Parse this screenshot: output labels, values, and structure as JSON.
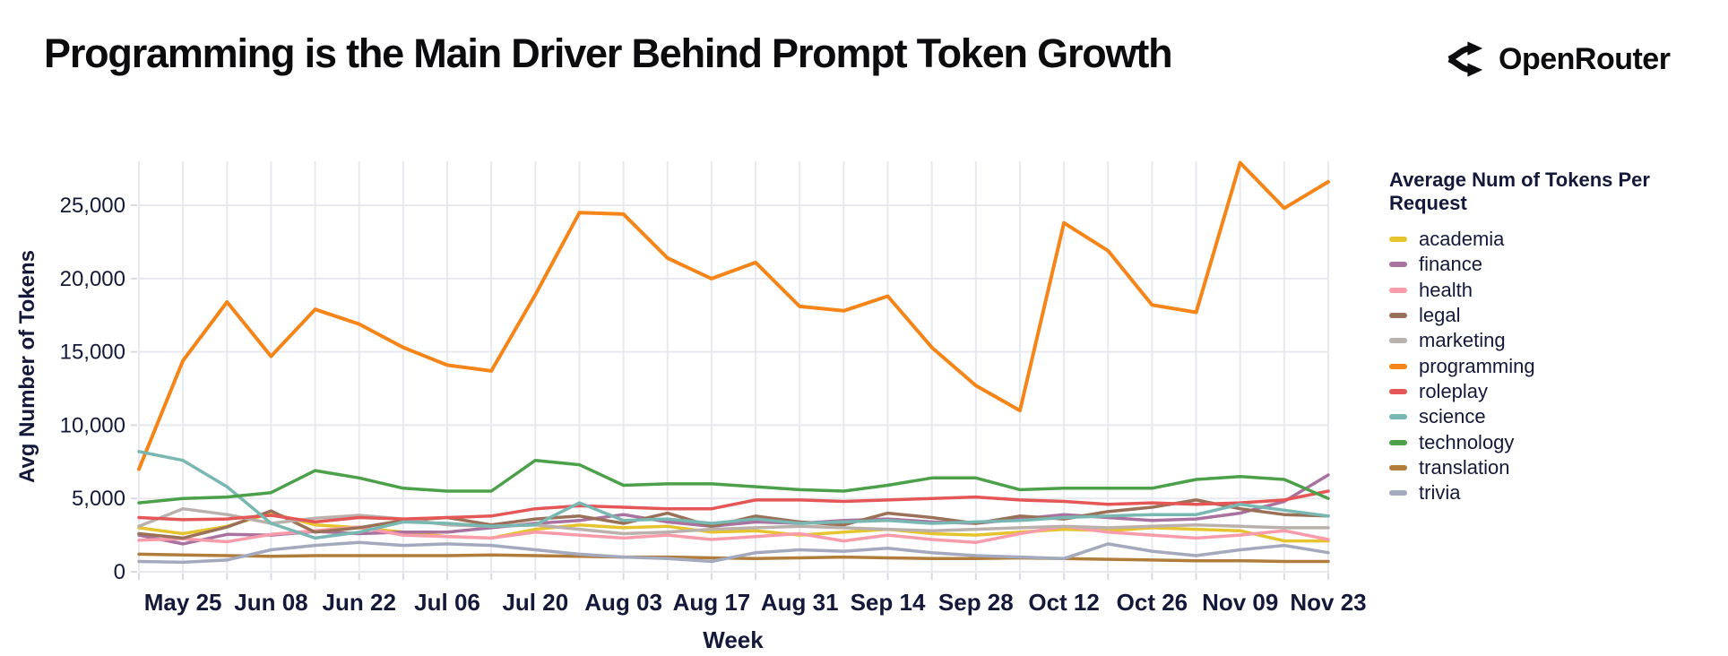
{
  "header": {
    "title": "Programming is the Main Driver Behind Prompt Token Growth",
    "brand": "OpenRouter"
  },
  "colors": {
    "background": "#ffffff",
    "title_text": "#0c0c0e",
    "axis_text": "#14193a",
    "grid": "#e8e9ef",
    "tick": "#d8dae2"
  },
  "chart_data": {
    "type": "line",
    "title": "Programming is the Main Driver Behind Prompt Token Growth",
    "xlabel": "Week",
    "ylabel": "Avg Number of Tokens",
    "ylim": [
      0,
      28000
    ],
    "grid": true,
    "legend_title": "Average Num of Tokens Per Request",
    "legend_position": "right",
    "x": [
      "May 18",
      "May 25",
      "Jun 01",
      "Jun 08",
      "Jun 15",
      "Jun 22",
      "Jun 29",
      "Jul 06",
      "Jul 13",
      "Jul 20",
      "Jul 27",
      "Aug 03",
      "Aug 10",
      "Aug 17",
      "Aug 24",
      "Aug 31",
      "Sep 07",
      "Sep 14",
      "Sep 21",
      "Sep 28",
      "Oct 05",
      "Oct 12",
      "Oct 19",
      "Oct 26",
      "Nov 02",
      "Nov 09",
      "Nov 16",
      "Nov 23"
    ],
    "x_tick_indices": [
      1,
      3,
      5,
      7,
      9,
      11,
      13,
      15,
      17,
      19,
      21,
      23,
      25,
      27
    ],
    "x_tick_labels": [
      "May 25",
      "Jun 08",
      "Jun 22",
      "Jul 06",
      "Jul 20",
      "Aug 03",
      "Aug 17",
      "Aug 31",
      "Sep 14",
      "Sep 28",
      "Oct 12",
      "Oct 26",
      "Nov 09",
      "Nov 23"
    ],
    "y_ticks": [
      0,
      5000,
      10000,
      15000,
      20000,
      25000
    ],
    "y_tick_labels": [
      "0",
      "5,000",
      "10,000",
      "15,000",
      "20,000",
      "25,000"
    ],
    "series": [
      {
        "name": "academia",
        "color": "#e6c42f",
        "values": [
          3000,
          2600,
          3100,
          4000,
          3200,
          3000,
          2700,
          2400,
          2300,
          2900,
          3200,
          3000,
          3100,
          2700,
          2800,
          2500,
          2700,
          2900,
          2600,
          2500,
          2700,
          2900,
          2800,
          3000,
          2900,
          2800,
          2100,
          2100
        ]
      },
      {
        "name": "finance",
        "color": "#a9729f",
        "values": [
          2500,
          1900,
          2550,
          2500,
          2750,
          2600,
          2700,
          2700,
          3000,
          3300,
          3500,
          3900,
          3400,
          3100,
          3400,
          3300,
          3500,
          3600,
          3400,
          3300,
          3600,
          3900,
          3700,
          3500,
          3600,
          4000,
          4800,
          6600
        ]
      },
      {
        "name": "health",
        "color": "#f89cab",
        "values": [
          2150,
          2250,
          2050,
          2550,
          2800,
          3050,
          2500,
          2400,
          2300,
          2700,
          2500,
          2300,
          2500,
          2200,
          2400,
          2600,
          2100,
          2500,
          2200,
          2000,
          2600,
          3100,
          2700,
          2500,
          2300,
          2500,
          2800,
          2200
        ]
      },
      {
        "name": "legal",
        "color": "#9a7158",
        "values": [
          2600,
          2300,
          3050,
          4150,
          2700,
          3000,
          3500,
          3700,
          3200,
          3600,
          3800,
          3300,
          4000,
          3100,
          3800,
          3400,
          3200,
          4000,
          3700,
          3300,
          3800,
          3600,
          4100,
          4400,
          4900,
          4300,
          3900,
          3800
        ]
      },
      {
        "name": "marketing",
        "color": "#bab1ad",
        "values": [
          3100,
          4300,
          3900,
          3300,
          3650,
          3850,
          3600,
          3200,
          3100,
          3200,
          2900,
          2600,
          2700,
          2900,
          3000,
          3100,
          3000,
          2900,
          2800,
          2900,
          3000,
          3100,
          3000,
          3100,
          3200,
          3100,
          3000,
          3000
        ]
      },
      {
        "name": "programming",
        "color": "#f58518",
        "values": [
          7000,
          14400,
          18400,
          14700,
          17900,
          16900,
          15300,
          14100,
          13700,
          18900,
          24500,
          24400,
          21400,
          20000,
          21100,
          18100,
          17800,
          18800,
          15300,
          12700,
          11000,
          23800,
          21900,
          18200,
          17700,
          27900,
          24800,
          26600
        ]
      },
      {
        "name": "roleplay",
        "color": "#e45756",
        "values": [
          3700,
          3550,
          3600,
          3850,
          3400,
          3700,
          3600,
          3700,
          3800,
          4300,
          4500,
          4400,
          4300,
          4300,
          4900,
          4900,
          4800,
          4900,
          5000,
          5100,
          4900,
          4800,
          4600,
          4700,
          4600,
          4700,
          4900,
          5500
        ]
      },
      {
        "name": "science",
        "color": "#79b8b2",
        "values": [
          8200,
          7600,
          5800,
          3300,
          2300,
          2700,
          3400,
          3300,
          3100,
          3200,
          4700,
          3500,
          3600,
          3300,
          3600,
          3300,
          3400,
          3500,
          3300,
          3400,
          3500,
          3700,
          3800,
          3900,
          3900,
          4600,
          4200,
          3800
        ]
      },
      {
        "name": "technology",
        "color": "#4da04a",
        "values": [
          4700,
          5000,
          5100,
          5400,
          6900,
          6400,
          5700,
          5500,
          5500,
          7600,
          7300,
          5900,
          6000,
          6000,
          5800,
          5600,
          5500,
          5900,
          6400,
          6400,
          5600,
          5700,
          5700,
          5700,
          6300,
          6500,
          6300,
          5000
        ]
      },
      {
        "name": "translation",
        "color": "#b07d3c",
        "values": [
          1200,
          1150,
          1100,
          1050,
          1100,
          1100,
          1100,
          1100,
          1150,
          1100,
          1050,
          1000,
          1000,
          950,
          900,
          950,
          1000,
          950,
          900,
          900,
          950,
          900,
          850,
          800,
          750,
          750,
          700,
          700
        ]
      },
      {
        "name": "trivia",
        "color": "#a4a9bd",
        "values": [
          700,
          650,
          800,
          1500,
          1800,
          2000,
          1800,
          1900,
          1800,
          1500,
          1200,
          1000,
          900,
          700,
          1300,
          1500,
          1400,
          1600,
          1300,
          1100,
          1000,
          900,
          1900,
          1400,
          1100,
          1500,
          1800,
          1300
        ]
      }
    ]
  }
}
